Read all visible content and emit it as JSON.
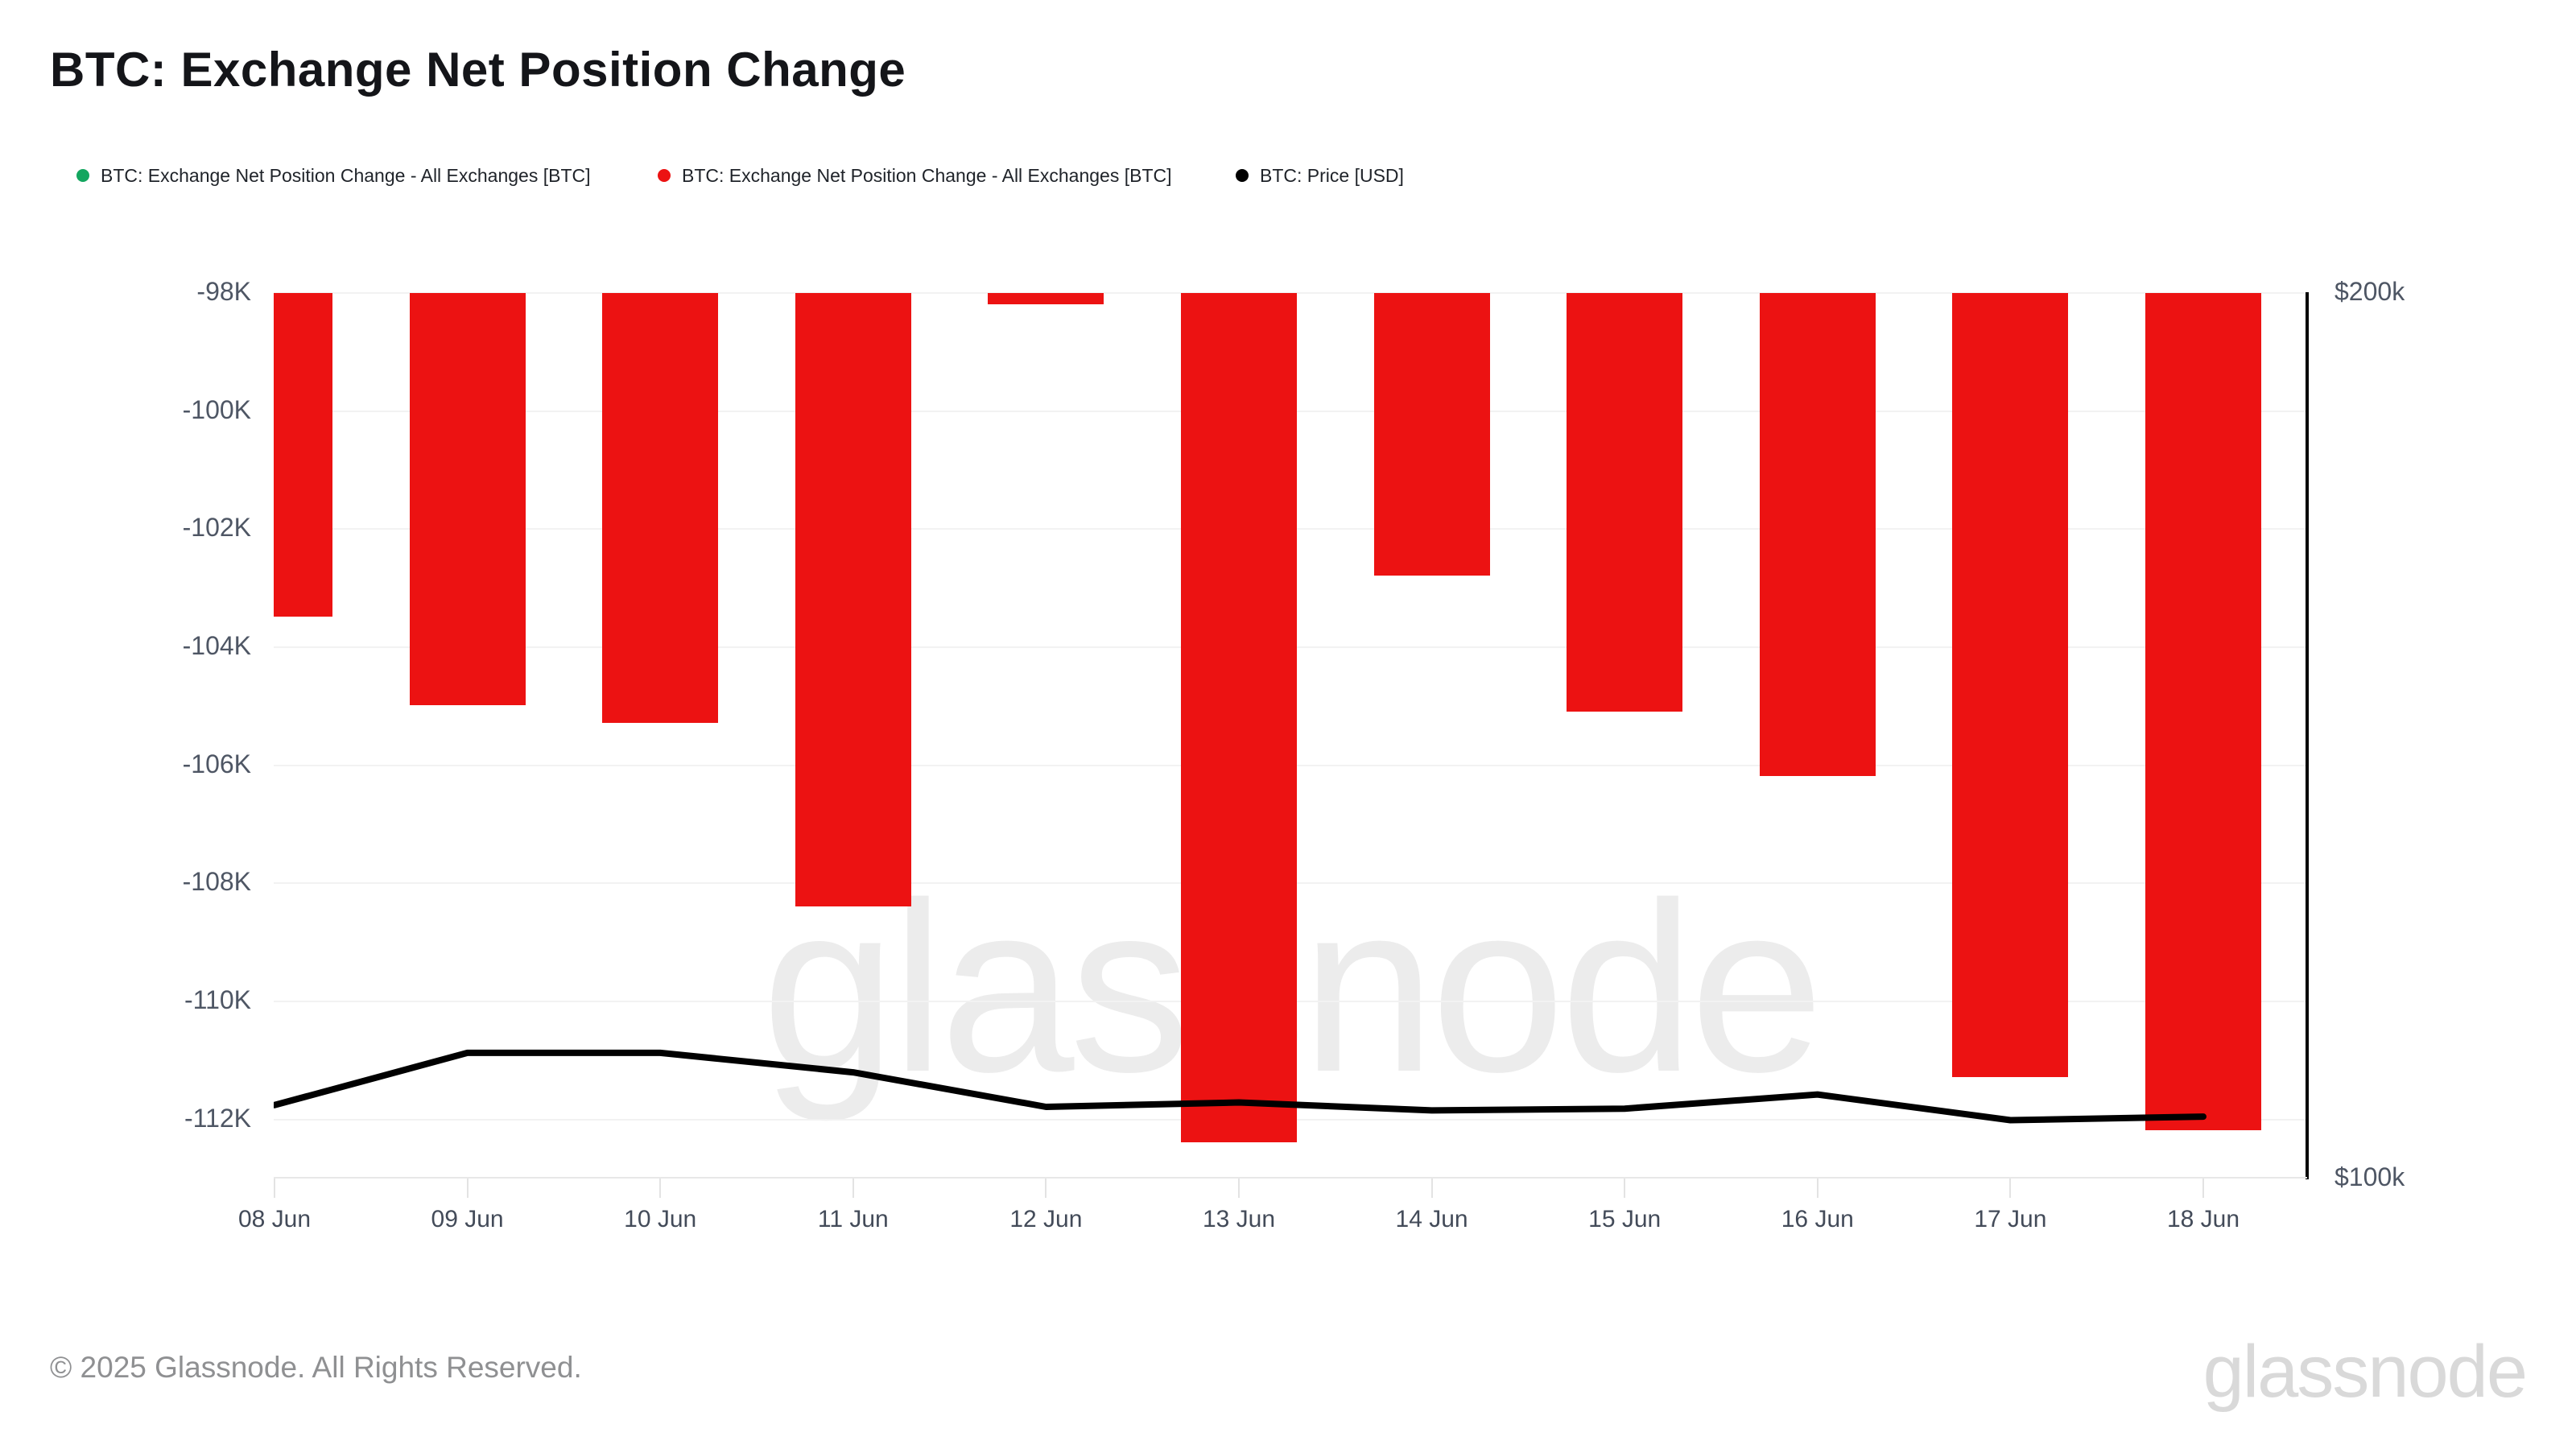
{
  "page": {
    "title": "BTC: Exchange Net Position Change",
    "copyright": "© 2025 Glassnode. All Rights Reserved.",
    "watermark": "glassnode",
    "brand_logo": "glassnode"
  },
  "colors": {
    "bar_red": "#ec1212",
    "legend_green": "#13a65f",
    "price_black": "#000000",
    "gridline": "#f2f2f2",
    "axis_label": "#4e5664"
  },
  "legend": {
    "items": [
      {
        "label": "BTC: Exchange Net Position Change - All Exchanges [BTC]",
        "color": "#13a65f"
      },
      {
        "label": "BTC: Exchange Net Position Change - All Exchanges [BTC]",
        "color": "#ec1212"
      },
      {
        "label": "BTC: Price [USD]",
        "color": "#000000"
      }
    ]
  },
  "chart_data": {
    "type": "bar",
    "title": "BTC: Exchange Net Position Change",
    "categories": [
      "08 Jun",
      "09 Jun",
      "10 Jun",
      "11 Jun",
      "12 Jun",
      "13 Jun",
      "14 Jun",
      "15 Jun",
      "16 Jun",
      "17 Jun",
      "18 Jun"
    ],
    "series": [
      {
        "name": "BTC: Exchange Net Position Change - All Exchanges [BTC]",
        "type": "bar",
        "axis": "left",
        "color": "#ec1212",
        "values": [
          -103500,
          -105000,
          -105300,
          -108400,
          -98200,
          -112400,
          -102800,
          -105100,
          -106200,
          -111300,
          -112200
        ]
      },
      {
        "name": "BTC: Price [USD]",
        "type": "line",
        "axis": "right",
        "color": "#000000",
        "values": [
          108200,
          114100,
          114100,
          111900,
          108000,
          108500,
          107600,
          107800,
          109400,
          106500,
          106900
        ]
      }
    ],
    "left_axis": {
      "ticks": [
        "-98K",
        "-100K",
        "-102K",
        "-104K",
        "-106K",
        "-108K",
        "-110K",
        "-112K"
      ],
      "tick_values": [
        -98000,
        -100000,
        -102000,
        -104000,
        -106000,
        -108000,
        -110000,
        -112000
      ],
      "max": -98000,
      "min": -113000
    },
    "right_axis": {
      "ticks": [
        "$200k",
        "$100k"
      ],
      "tick_values": [
        200000,
        100000
      ],
      "max": 200000,
      "min": 100000
    },
    "grid": "horizontal-only",
    "legend_position": "top-left",
    "bars_clipped_at_axis_max": true
  }
}
